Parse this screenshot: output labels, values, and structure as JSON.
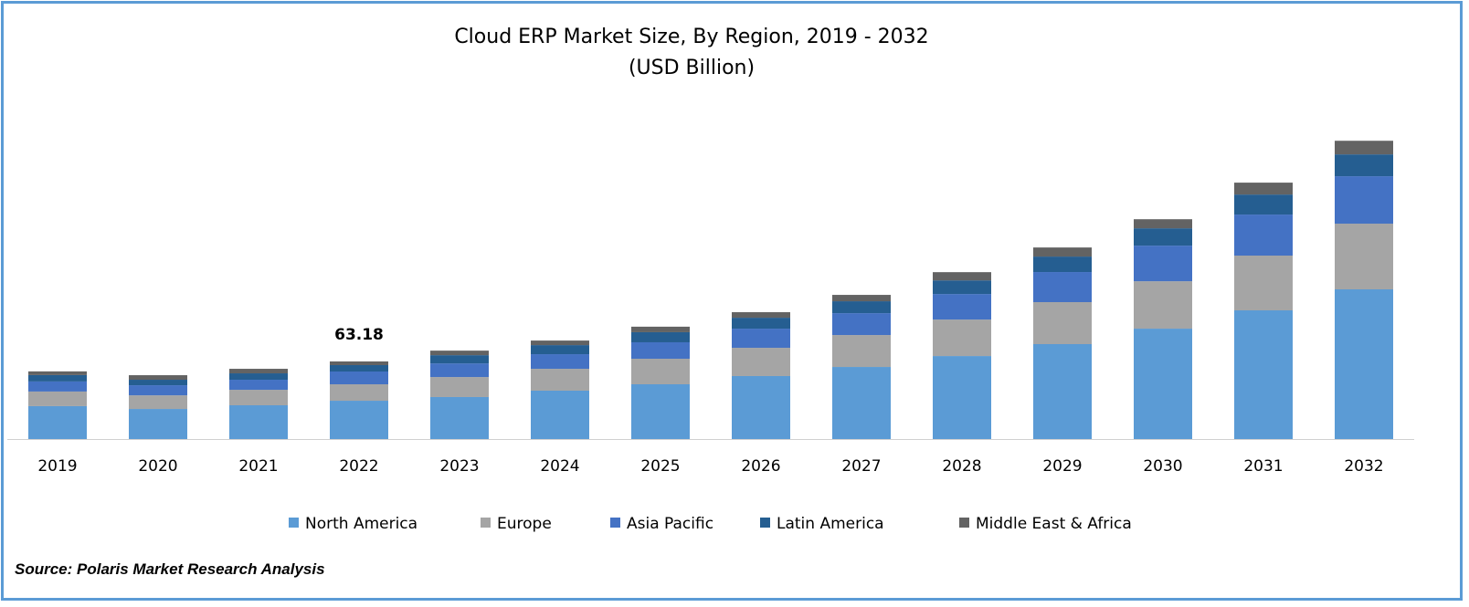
{
  "chart_data": {
    "type": "bar",
    "stacked": true,
    "title": "Cloud ERP Market Size, By Region, 2019 - 2032",
    "subtitle": "(USD Billion)",
    "xlabel": "",
    "ylabel": "",
    "categories": [
      "2019",
      "2020",
      "2021",
      "2022",
      "2023",
      "2024",
      "2025",
      "2026",
      "2027",
      "2028",
      "2029",
      "2030",
      "2031",
      "2032"
    ],
    "series": [
      {
        "name": "North America",
        "color": "#5B9BD5",
        "values": [
          26.8,
          24.5,
          27.5,
          31.2,
          34.2,
          39.4,
          44.6,
          51.3,
          58.7,
          67.6,
          77.3,
          89.9,
          104.8,
          121.9
        ]
      },
      {
        "name": "Europe",
        "color": "#A5A5A5",
        "values": [
          11.9,
          11.1,
          12.6,
          13.4,
          16.3,
          17.8,
          20.8,
          23.0,
          26.0,
          29.7,
          34.2,
          38.6,
          44.6,
          53.5
        ]
      },
      {
        "name": "Asia Pacific",
        "color": "#4472C4",
        "values": [
          8.2,
          8.2,
          8.2,
          10.4,
          11.1,
          11.9,
          13.4,
          15.6,
          17.8,
          20.8,
          24.5,
          29.0,
          33.4,
          38.6
        ]
      },
      {
        "name": "Latin America",
        "color": "#255E91",
        "values": [
          5.2,
          4.5,
          5.2,
          5.2,
          6.7,
          7.4,
          8.2,
          8.9,
          9.7,
          11.1,
          12.6,
          14.1,
          16.3,
          17.8
        ]
      },
      {
        "name": "Middle East & Africa",
        "color": "#636363",
        "values": [
          3.0,
          3.7,
          3.7,
          3.0,
          3.7,
          3.7,
          4.5,
          4.5,
          5.2,
          6.7,
          7.4,
          7.4,
          9.7,
          11.1
        ]
      }
    ],
    "annotations": [
      {
        "category": "2022",
        "text": "63.18"
      }
    ],
    "ylim": [
      0,
      250
    ],
    "grid": false,
    "legend": "bottom"
  },
  "source": "Source: Polaris Market Research Analysis",
  "border_color": "#5B9BD5"
}
